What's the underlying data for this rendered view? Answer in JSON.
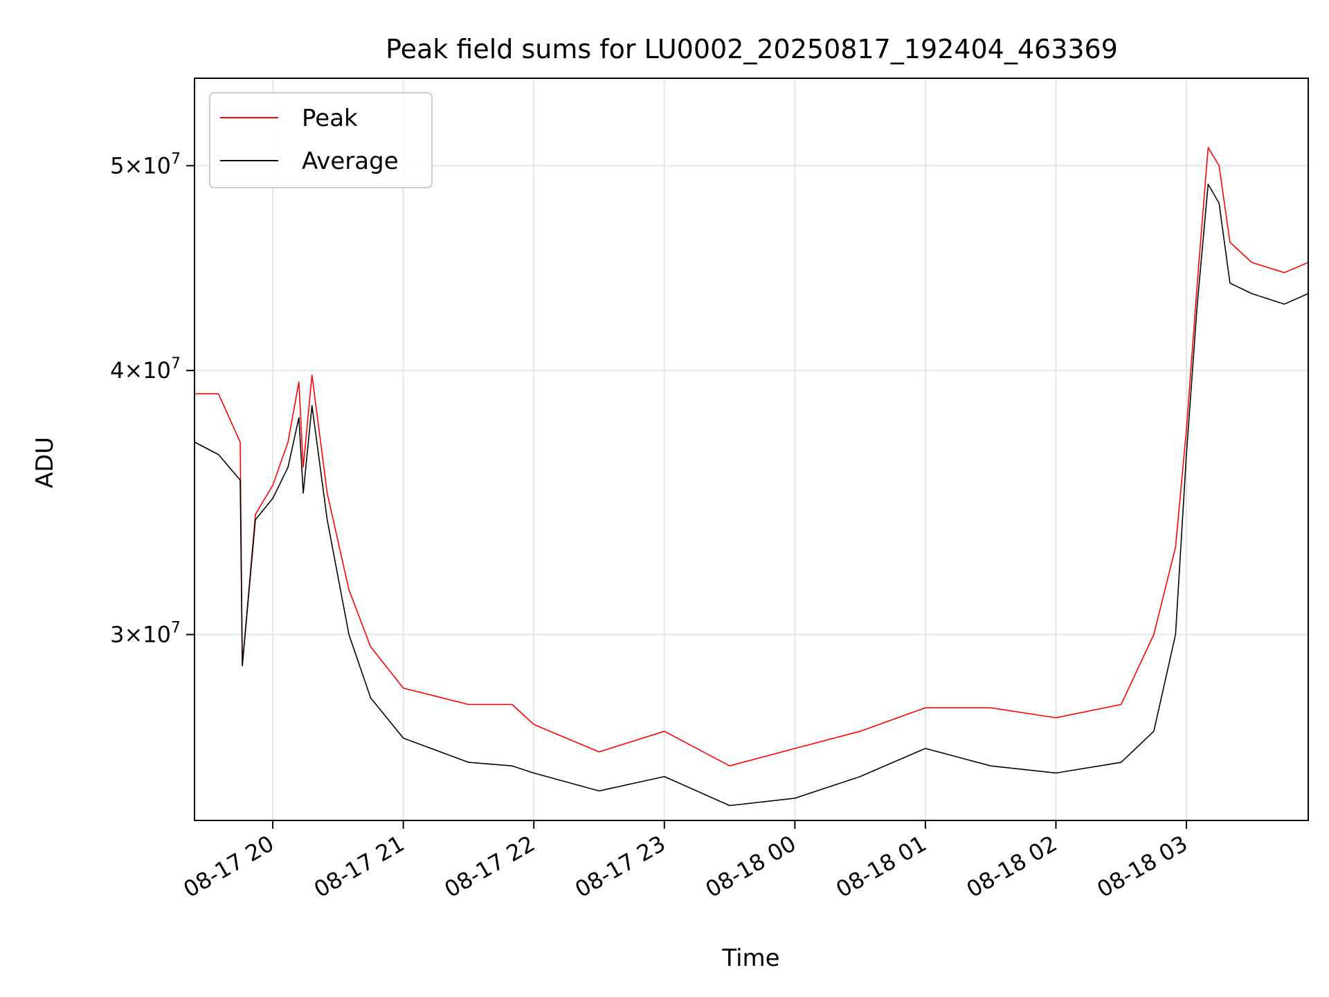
{
  "chart_data": {
    "type": "line",
    "title": "Peak field sums for LU0002_20250817_192404_463369",
    "xlabel": "Time",
    "ylabel": "ADU",
    "yscale": "log",
    "xlim": [
      "2025-08-17 19:24",
      "2025-08-18 03:56"
    ],
    "ylim": [
      24500000,
      55000000
    ],
    "x_ticks": [
      {
        "t": "2025-08-17 20:00",
        "label": "08-17 20"
      },
      {
        "t": "2025-08-17 21:00",
        "label": "08-17 21"
      },
      {
        "t": "2025-08-17 22:00",
        "label": "08-17 22"
      },
      {
        "t": "2025-08-17 23:00",
        "label": "08-17 23"
      },
      {
        "t": "2025-08-18 00:00",
        "label": "08-18 00"
      },
      {
        "t": "2025-08-18 01:00",
        "label": "08-18 01"
      },
      {
        "t": "2025-08-18 02:00",
        "label": "08-18 02"
      },
      {
        "t": "2025-08-18 03:00",
        "label": "08-18 03"
      }
    ],
    "y_ticks": [
      {
        "value": 30000000,
        "mant": "3",
        "exp": "7"
      },
      {
        "value": 40000000,
        "mant": "4",
        "exp": "7"
      },
      {
        "value": 50000000,
        "mant": "5",
        "exp": "7"
      }
    ],
    "grid": true,
    "legend": "upper-left",
    "series": [
      {
        "name": "Peak",
        "color": "#ff0000",
        "x": [
          "2025-08-17 19:24",
          "2025-08-17 19:35",
          "2025-08-17 19:45",
          "2025-08-17 19:46",
          "2025-08-17 19:52",
          "2025-08-17 20:00",
          "2025-08-17 20:07",
          "2025-08-17 20:12",
          "2025-08-17 20:14",
          "2025-08-17 20:18",
          "2025-08-17 20:25",
          "2025-08-17 20:35",
          "2025-08-17 20:45",
          "2025-08-17 21:00",
          "2025-08-17 21:30",
          "2025-08-17 21:50",
          "2025-08-17 22:00",
          "2025-08-17 22:30",
          "2025-08-17 23:00",
          "2025-08-17 23:30",
          "2025-08-18 00:00",
          "2025-08-18 00:30",
          "2025-08-18 01:00",
          "2025-08-18 01:30",
          "2025-08-18 02:00",
          "2025-08-18 02:30",
          "2025-08-18 02:45",
          "2025-08-18 02:55",
          "2025-08-18 03:00",
          "2025-08-18 03:05",
          "2025-08-18 03:10",
          "2025-08-18 03:15",
          "2025-08-18 03:20",
          "2025-08-18 03:30",
          "2025-08-18 03:45",
          "2025-08-18 03:56"
        ],
        "y": [
          39000000,
          39000000,
          37000000,
          29000000,
          34200000,
          35300000,
          37000000,
          39500000,
          36000000,
          39800000,
          35000000,
          31500000,
          29600000,
          28300000,
          27800000,
          27800000,
          27200000,
          26400000,
          27000000,
          26000000,
          26500000,
          27000000,
          27700000,
          27700000,
          27400000,
          27800000,
          30000000,
          33000000,
          37500000,
          44000000,
          51000000,
          50000000,
          46000000,
          45000000,
          44500000,
          45000000
        ]
      },
      {
        "name": "Average",
        "color": "#000000",
        "x": [
          "2025-08-17 19:24",
          "2025-08-17 19:35",
          "2025-08-17 19:45",
          "2025-08-17 19:46",
          "2025-08-17 19:52",
          "2025-08-17 20:00",
          "2025-08-17 20:07",
          "2025-08-17 20:12",
          "2025-08-17 20:14",
          "2025-08-17 20:18",
          "2025-08-17 20:25",
          "2025-08-17 20:35",
          "2025-08-17 20:45",
          "2025-08-17 21:00",
          "2025-08-17 21:30",
          "2025-08-17 21:50",
          "2025-08-17 22:00",
          "2025-08-17 22:30",
          "2025-08-17 23:00",
          "2025-08-17 23:30",
          "2025-08-18 00:00",
          "2025-08-18 00:30",
          "2025-08-18 01:00",
          "2025-08-18 01:30",
          "2025-08-18 02:00",
          "2025-08-18 02:30",
          "2025-08-18 02:45",
          "2025-08-18 02:55",
          "2025-08-18 03:00",
          "2025-08-18 03:05",
          "2025-08-18 03:10",
          "2025-08-18 03:15",
          "2025-08-18 03:20",
          "2025-08-18 03:30",
          "2025-08-18 03:45",
          "2025-08-18 03:56"
        ],
        "y": [
          37000000,
          36500000,
          35500000,
          29000000,
          34000000,
          34800000,
          36000000,
          38000000,
          35000000,
          38500000,
          34000000,
          30000000,
          28000000,
          26800000,
          26100000,
          26000000,
          25800000,
          25300000,
          25700000,
          24900000,
          25100000,
          25700000,
          26500000,
          26000000,
          25800000,
          26100000,
          27000000,
          30000000,
          36500000,
          43000000,
          49000000,
          48000000,
          44000000,
          43500000,
          43000000,
          43500000
        ]
      }
    ]
  }
}
